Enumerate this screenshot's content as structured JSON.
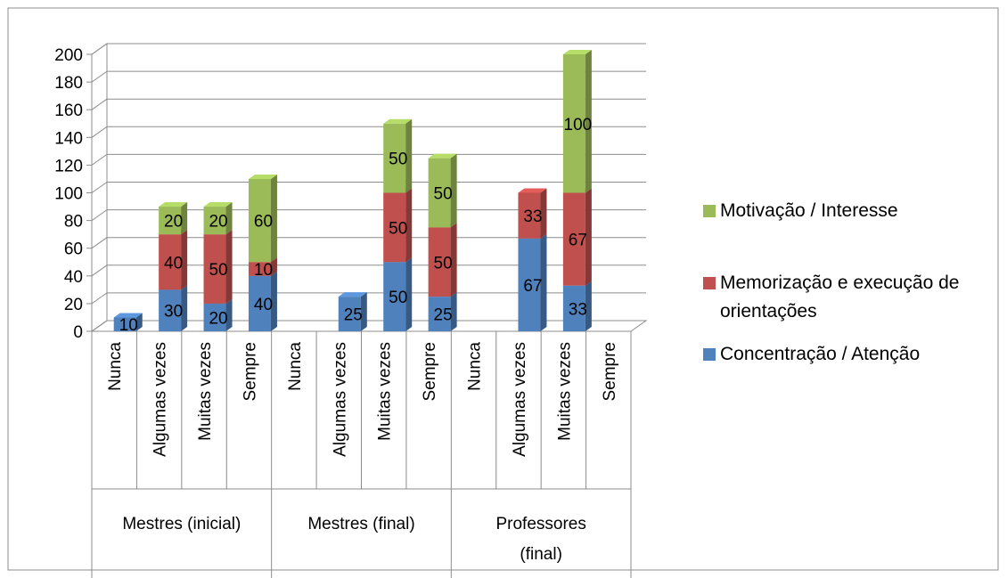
{
  "chart_data": {
    "type": "bar",
    "stacked": true,
    "three_d": true,
    "ylim": [
      0,
      200
    ],
    "yticks": [
      0,
      20,
      40,
      60,
      80,
      100,
      120,
      140,
      160,
      180,
      200
    ],
    "gridlines": true,
    "legend_position": "right",
    "groups": [
      {
        "label": "Mestres (inicial)",
        "label_lines": [
          "Mestres (inicial)"
        ],
        "categories": [
          "Nunca",
          "Algumas vezes",
          "Muitas vezes",
          "Sempre"
        ]
      },
      {
        "label": "Mestres (final)",
        "label_lines": [
          "Mestres (final)"
        ],
        "categories": [
          "Nunca",
          "Algumas vezes",
          "Muitas vezes",
          "Sempre"
        ]
      },
      {
        "label": "Professores (final)",
        "label_lines": [
          "Professores",
          "(final)"
        ],
        "categories": [
          "Nunca",
          "Algumas vezes",
          "Muitas vezes",
          "Sempre"
        ]
      }
    ],
    "series": [
      {
        "name": "Concentração / Atenção",
        "color": "#4F81BD",
        "values": [
          10,
          30,
          20,
          40,
          null,
          25,
          50,
          25,
          null,
          67,
          33,
          null
        ]
      },
      {
        "name": "Memorização e execução de orientações",
        "color": "#C0504D",
        "values": [
          null,
          40,
          50,
          10,
          null,
          null,
          50,
          50,
          null,
          33,
          67,
          null
        ]
      },
      {
        "name": "Motivação / Interesse",
        "color": "#9BBB59",
        "values": [
          null,
          20,
          20,
          60,
          null,
          null,
          50,
          50,
          null,
          null,
          100,
          null
        ]
      }
    ],
    "legend_order": [
      2,
      1,
      0
    ],
    "legend_lines": [
      [
        "Motivação / Interesse"
      ],
      [
        "Memorização e execução de",
        "orientações"
      ],
      [
        "Concentração / Atenção"
      ]
    ]
  }
}
